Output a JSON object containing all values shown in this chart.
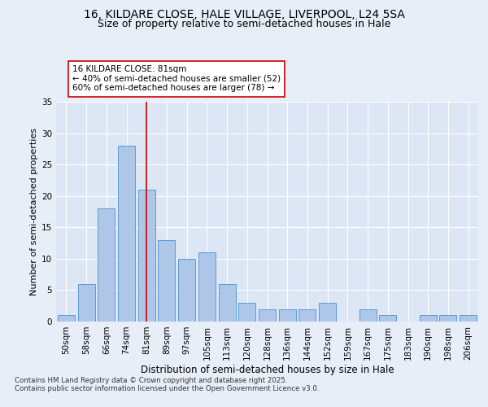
{
  "title_line1": "16, KILDARE CLOSE, HALE VILLAGE, LIVERPOOL, L24 5SA",
  "title_line2": "Size of property relative to semi-detached houses in Hale",
  "xlabel": "Distribution of semi-detached houses by size in Hale",
  "ylabel": "Number of semi-detached properties",
  "categories": [
    "50sqm",
    "58sqm",
    "66sqm",
    "74sqm",
    "81sqm",
    "89sqm",
    "97sqm",
    "105sqm",
    "113sqm",
    "120sqm",
    "128sqm",
    "136sqm",
    "144sqm",
    "152sqm",
    "159sqm",
    "167sqm",
    "175sqm",
    "183sqm",
    "190sqm",
    "198sqm",
    "206sqm"
  ],
  "values": [
    1,
    6,
    18,
    28,
    21,
    13,
    10,
    11,
    6,
    3,
    2,
    2,
    2,
    3,
    0,
    2,
    1,
    0,
    1,
    1,
    1
  ],
  "bar_color": "#aec6e8",
  "bar_edge_color": "#5b9bd5",
  "vline_x": 4,
  "vline_color": "#cc0000",
  "annotation_text": "16 KILDARE CLOSE: 81sqm\n← 40% of semi-detached houses are smaller (52)\n60% of semi-detached houses are larger (78) →",
  "annotation_box_color": "#ffffff",
  "annotation_box_edge": "#cc0000",
  "ylim": [
    0,
    35
  ],
  "yticks": [
    0,
    5,
    10,
    15,
    20,
    25,
    30,
    35
  ],
  "bg_color": "#e8eef7",
  "plot_bg_color": "#dce6f5",
  "footer_text": "Contains HM Land Registry data © Crown copyright and database right 2025.\nContains public sector information licensed under the Open Government Licence v3.0.",
  "title_fontsize": 10,
  "subtitle_fontsize": 9,
  "annotation_fontsize": 7.5,
  "ylabel_fontsize": 8,
  "xlabel_fontsize": 8.5,
  "tick_fontsize": 7.5,
  "footer_fontsize": 6.2
}
